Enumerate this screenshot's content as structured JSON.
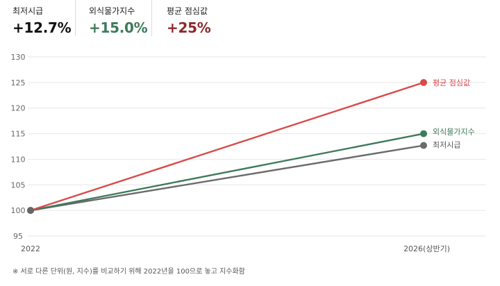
{
  "kpis": [
    {
      "label": "최저시급",
      "value": "+12.7%",
      "color": "#111111"
    },
    {
      "label": "외식물가지수",
      "value": "+15.0%",
      "color": "#3e7a5c"
    },
    {
      "label": "평균 점심값",
      "value": "+25%",
      "color": "#8b2a2a"
    }
  ],
  "chart_data": {
    "type": "line",
    "x": [
      "2022",
      "2026(상반기)"
    ],
    "ylim": [
      95,
      130
    ],
    "yticks": [
      95,
      100,
      105,
      110,
      115,
      120,
      125,
      130
    ],
    "grid": true,
    "series": [
      {
        "name": "평균 점심값",
        "values": [
          100,
          125
        ],
        "color": "#d94a4a",
        "label_color": "#d94a4a"
      },
      {
        "name": "외식물가지수",
        "values": [
          100,
          115
        ],
        "color": "#3e7a5c",
        "label_color": "#3e7a5c"
      },
      {
        "name": "최저시급",
        "values": [
          100,
          112.7
        ],
        "color": "#6b6b6b",
        "label_color": "#555555"
      }
    ]
  },
  "note": "※ 서로 다른 단위(원, 지수)를 비교하기 위해 2022년을 100으로 놓고 지수화함"
}
